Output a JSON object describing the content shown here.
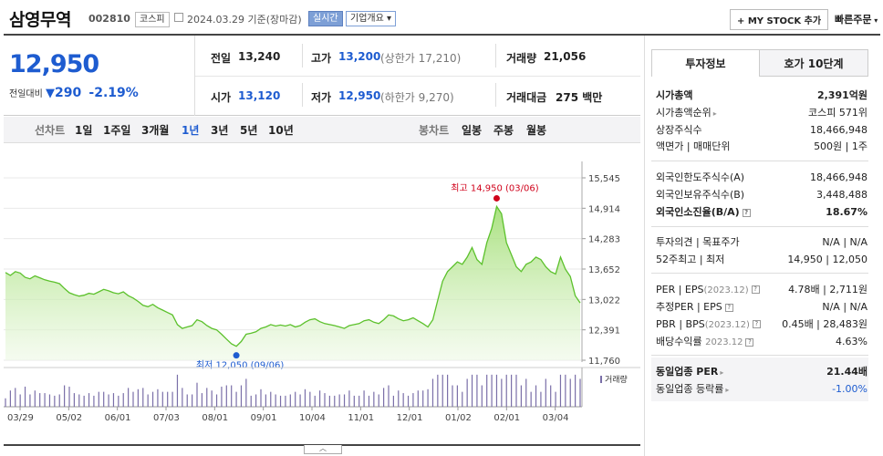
{
  "header": {
    "company_name": "삼영무역",
    "stock_code": "002810",
    "market_tag": "코스피",
    "date_text": "2024.03.29 기준(장마감)",
    "live_tag": "실시간",
    "overview_label": "기업개요",
    "mystock_label": "+ MY STOCK 추가",
    "quick_order_label": "빠른주문"
  },
  "price": {
    "current": "12,950",
    "change_label": "전일대비",
    "change_value": "290",
    "change_pct": "-2.19%"
  },
  "summary": {
    "prev_label": "전일",
    "prev_value": "13,240",
    "high_label": "고가",
    "high_value": "13,200",
    "upper_limit": "(상한가 17,210)",
    "volume_label": "거래량",
    "volume_value": "21,056",
    "open_label": "시가",
    "open_value": "13,120",
    "low_label": "저가",
    "low_value": "12,950",
    "lower_limit": "(하한가 9,270)",
    "amount_label": "거래대금",
    "amount_value": "275",
    "amount_unit": "백만"
  },
  "periods": {
    "line_label": "선차트",
    "items": [
      "1일",
      "1주일",
      "3개월",
      "1년",
      "3년",
      "5년",
      "10년"
    ],
    "selected": "1년",
    "candle_label": "봉차트",
    "candle_items": [
      "일봉",
      "주봉",
      "월봉"
    ]
  },
  "chart_data": {
    "type": "area",
    "yticks": [
      "15,545",
      "14,914",
      "14,283",
      "13,652",
      "13,022",
      "12,391",
      "11,760"
    ],
    "ylim": [
      11760,
      15545
    ],
    "xticks": [
      "03/29",
      "05/02",
      "06/01",
      "07/03",
      "08/01",
      "09/01",
      "10/04",
      "11/01",
      "12/01",
      "01/02",
      "02/01",
      "03/04"
    ],
    "high_annotation": "최고 14,950 (03/06)",
    "low_annotation": "최저 12,050 (09/06)",
    "volume_legend": "거래량",
    "colors": {
      "line": "#5cc12c",
      "fill": "#a8e07c",
      "high": "#d0021b",
      "low": "#1e5cd0"
    },
    "values": [
      13580,
      13520,
      13600,
      13570,
      13480,
      13450,
      13510,
      13470,
      13430,
      13400,
      13380,
      13350,
      13250,
      13160,
      13120,
      13090,
      13110,
      13150,
      13130,
      13180,
      13230,
      13200,
      13160,
      13140,
      13180,
      13100,
      13050,
      12980,
      12900,
      12870,
      12920,
      12850,
      12800,
      12750,
      12700,
      12500,
      12420,
      12450,
      12480,
      12600,
      12560,
      12480,
      12420,
      12390,
      12300,
      12200,
      12100,
      12050,
      12150,
      12300,
      12320,
      12350,
      12420,
      12450,
      12500,
      12470,
      12490,
      12470,
      12500,
      12450,
      12480,
      12550,
      12600,
      12620,
      12560,
      12520,
      12500,
      12480,
      12450,
      12420,
      12480,
      12500,
      12520,
      12580,
      12600,
      12550,
      12520,
      12600,
      12700,
      12680,
      12620,
      12580,
      12600,
      12640,
      12580,
      12520,
      12450,
      12600,
      13000,
      13400,
      13600,
      13700,
      13800,
      13750,
      13900,
      14100,
      13850,
      13750,
      14200,
      14500,
      14950,
      14800,
      14200,
      13950,
      13700,
      13600,
      13750,
      13800,
      13900,
      13850,
      13700,
      13600,
      13550,
      13900,
      13650,
      13500,
      13100,
      12950
    ]
  },
  "tabs": {
    "invest": "투자정보",
    "hoga": "호가 10단계"
  },
  "info": {
    "market_cap_label": "시가총액",
    "market_cap_value": "2,391억원",
    "rank_label": "시가총액순위",
    "rank_value": "코스피 571위",
    "shares_label": "상장주식수",
    "shares_value": "18,466,948",
    "par_label": "액면가 | 매매단위",
    "par_value": "500원 | 1주",
    "foreign_limit_label": "외국인한도주식수(A)",
    "foreign_limit_value": "18,466,948",
    "foreign_hold_label": "외국인보유주식수(B)",
    "foreign_hold_value": "3,448,488",
    "foreign_rate_label": "외국인소진율(B/A)",
    "foreign_rate_value": "18.67%",
    "opinion_label": "투자의견 | 목표주가",
    "opinion_value": "N/A | N/A",
    "w52_label": "52주최고 | 최저",
    "w52_value": "14,950 | 12,050",
    "per_label": "PER | EPS",
    "per_sub": "(2023.12)",
    "per_value": "4.78배 | 2,711원",
    "eper_label": "추정PER | EPS",
    "eper_value": "N/A | N/A",
    "pbr_label": "PBR | BPS",
    "pbr_sub": "(2023.12)",
    "pbr_value": "0.45배 | 28,483원",
    "div_label": "배당수익률",
    "div_sub": "2023.12",
    "div_value": "4.63%",
    "sector_per_label": "동일업종 PER",
    "sector_per_value": "21.44배",
    "sector_rate_label": "동일업종 등락률",
    "sector_rate_value": "-1.00%"
  }
}
